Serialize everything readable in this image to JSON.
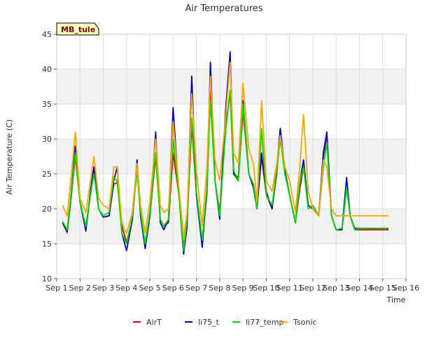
{
  "chart_data": {
    "type": "line",
    "title": "Air Temperatures",
    "xlabel": "Time",
    "ylabel": "Air Temperature (C)",
    "badge": "MB_tule",
    "xlim": [
      1,
      16
    ],
    "ylim": [
      10,
      45
    ],
    "x_ticks": [
      {
        "value": 1,
        "label": "Sep 1"
      },
      {
        "value": 2,
        "label": "Sep 2"
      },
      {
        "value": 3,
        "label": "Sep 3"
      },
      {
        "value": 4,
        "label": "Sep 4"
      },
      {
        "value": 5,
        "label": "Sep 5"
      },
      {
        "value": 6,
        "label": "Sep 6"
      },
      {
        "value": 7,
        "label": "Sep 7"
      },
      {
        "value": 8,
        "label": "Sep 8"
      },
      {
        "value": 9,
        "label": "Sep 9"
      },
      {
        "value": 10,
        "label": "Sep 10"
      },
      {
        "value": 11,
        "label": "Sep 11"
      },
      {
        "value": 12,
        "label": "Sep 12"
      },
      {
        "value": 13,
        "label": "Sep 13"
      },
      {
        "value": 14,
        "label": "Sep 14"
      },
      {
        "value": 15,
        "label": "Sep 15"
      },
      {
        "value": 16,
        "label": "Sep 16"
      }
    ],
    "y_ticks": [
      10,
      15,
      20,
      25,
      30,
      35,
      40,
      45
    ],
    "grid": true,
    "legend_position": "bottom",
    "x": [
      1.25,
      1.45,
      1.6,
      1.8,
      2.0,
      2.25,
      2.45,
      2.6,
      2.8,
      3.0,
      3.25,
      3.45,
      3.6,
      3.8,
      4.0,
      4.25,
      4.45,
      4.6,
      4.8,
      5.0,
      5.25,
      5.45,
      5.6,
      5.8,
      6.0,
      6.25,
      6.45,
      6.6,
      6.8,
      7.0,
      7.25,
      7.45,
      7.6,
      7.8,
      8.0,
      8.25,
      8.45,
      8.6,
      8.8,
      9.0,
      9.25,
      9.45,
      9.6,
      9.8,
      10.0,
      10.25,
      10.45,
      10.6,
      10.8,
      11.0,
      11.25,
      11.45,
      11.6,
      11.8,
      12.0,
      12.25,
      12.45,
      12.6,
      12.8,
      13.0,
      13.25,
      13.45,
      13.6,
      13.8,
      14.0,
      14.25,
      14.45,
      14.6,
      14.8,
      15.0,
      15.25
    ],
    "series": [
      {
        "name": "AirT",
        "color": "#e00000",
        "values": [
          18.0,
          16.6,
          21.0,
          27.5,
          21.0,
          17.2,
          22.0,
          25.5,
          20.0,
          18.8,
          19.0,
          23.5,
          23.8,
          17.5,
          15.2,
          18.5,
          26.0,
          19.0,
          14.5,
          19.0,
          27.5,
          18.5,
          17.5,
          18.0,
          28.0,
          22.0,
          14.5,
          18.0,
          32.0,
          22.0,
          15.5,
          22.0,
          38.0,
          24.0,
          19.5,
          32.0,
          36.5,
          25.0,
          24.0,
          34.0,
          25.0,
          23.5,
          20.0,
          27.5,
          22.0,
          20.0,
          25.0,
          31.5,
          25.0,
          22.0,
          18.0,
          23.0,
          26.0,
          20.5,
          20.0,
          19.0,
          27.5,
          30.0,
          19.0,
          17.0,
          17.0,
          23.0,
          19.0,
          17.0,
          17.0,
          17.0,
          17.0,
          17.0,
          17.0,
          17.0,
          17.0
        ]
      },
      {
        "name": "li75_t",
        "color": "#0000cc",
        "values": [
          18.0,
          16.8,
          21.5,
          29.0,
          21.0,
          16.8,
          22.5,
          26.0,
          20.0,
          18.8,
          19.0,
          24.0,
          26.0,
          16.5,
          14.0,
          18.5,
          27.0,
          19.0,
          14.3,
          19.0,
          31.0,
          18.0,
          17.0,
          18.5,
          34.5,
          22.0,
          13.5,
          17.5,
          39.0,
          22.0,
          14.5,
          23.0,
          41.0,
          24.0,
          18.5,
          34.0,
          42.5,
          25.0,
          24.5,
          35.5,
          25.0,
          23.0,
          20.0,
          28.0,
          22.5,
          20.0,
          26.0,
          31.5,
          25.5,
          22.0,
          18.0,
          24.0,
          27.0,
          20.5,
          20.0,
          19.0,
          28.0,
          31.0,
          19.0,
          17.0,
          17.0,
          24.5,
          19.0,
          17.2,
          17.2,
          17.2,
          17.2,
          17.2,
          17.2,
          17.2,
          17.2
        ]
      },
      {
        "name": "li77_temp",
        "color": "#00dd00",
        "values": [
          18.2,
          17.0,
          21.5,
          28.0,
          21.0,
          17.5,
          22.0,
          25.0,
          20.0,
          19.0,
          19.5,
          24.5,
          24.0,
          16.5,
          15.0,
          19.0,
          25.5,
          19.5,
          15.0,
          19.5,
          28.0,
          18.5,
          17.5,
          18.5,
          30.0,
          22.0,
          14.0,
          18.5,
          33.0,
          22.5,
          15.5,
          23.0,
          35.5,
          24.0,
          19.0,
          31.0,
          37.0,
          25.5,
          24.0,
          35.0,
          25.0,
          23.5,
          20.0,
          31.5,
          22.0,
          20.5,
          25.5,
          30.0,
          25.0,
          22.0,
          18.0,
          24.0,
          26.0,
          20.0,
          20.5,
          19.0,
          26.0,
          29.5,
          19.0,
          17.0,
          17.2,
          23.0,
          19.0,
          17.0,
          17.2,
          17.2,
          17.2,
          17.2,
          17.2,
          17.2,
          17.2
        ]
      },
      {
        "name": "Tsonic",
        "color": "#ffa500",
        "values": [
          20.5,
          19.0,
          24.0,
          31.0,
          21.5,
          19.5,
          24.0,
          27.5,
          21.5,
          20.5,
          20.0,
          26.0,
          26.0,
          18.0,
          16.5,
          19.5,
          26.5,
          20.5,
          16.5,
          21.0,
          30.0,
          20.5,
          19.5,
          20.0,
          32.5,
          23.0,
          16.0,
          19.5,
          36.5,
          25.5,
          17.5,
          26.0,
          39.0,
          27.0,
          24.0,
          33.0,
          41.0,
          28.0,
          26.5,
          38.0,
          28.5,
          26.5,
          21.0,
          35.5,
          24.0,
          22.5,
          26.5,
          30.5,
          26.0,
          24.0,
          19.5,
          26.5,
          33.5,
          22.5,
          20.0,
          19.0,
          27.0,
          26.0,
          20.0,
          19.0,
          19.0,
          19.0,
          19.0,
          19.0,
          19.0,
          19.0,
          19.0,
          19.0,
          19.0,
          19.0,
          19.0
        ]
      }
    ]
  }
}
